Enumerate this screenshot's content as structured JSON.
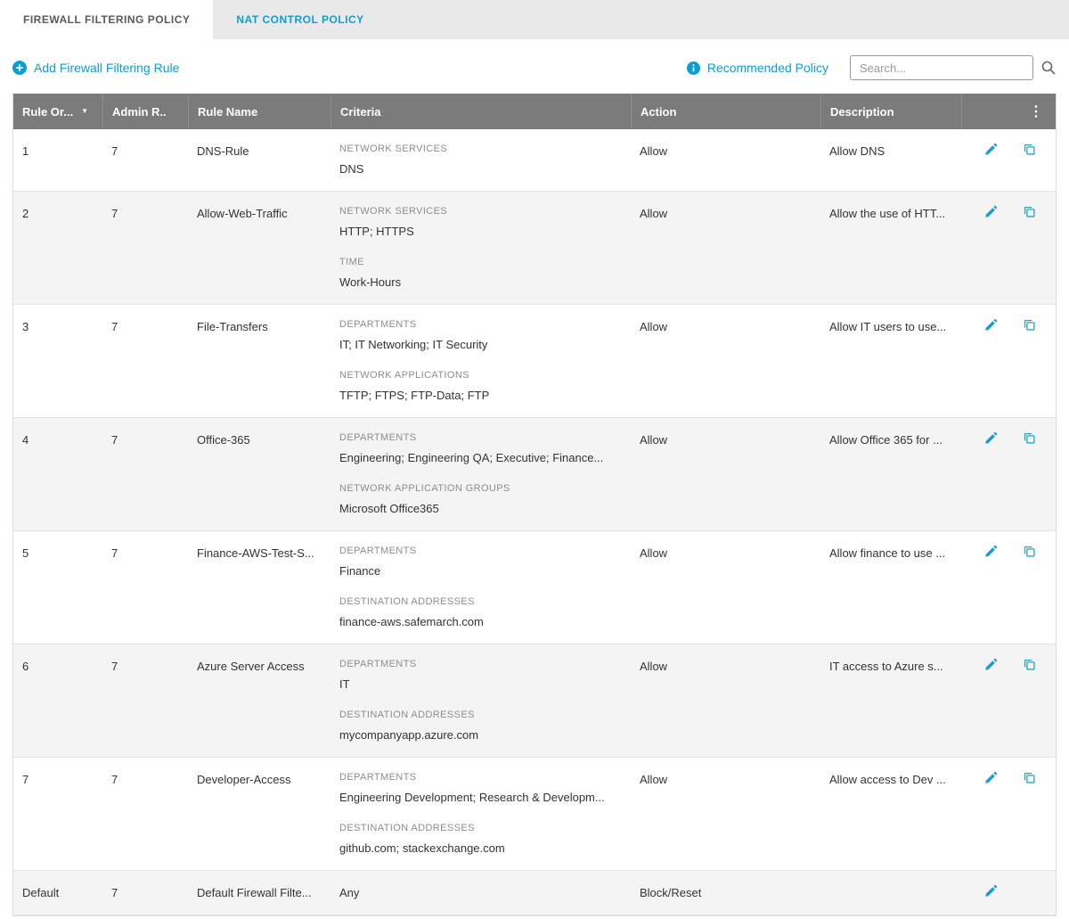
{
  "tabs": [
    {
      "label": "FIREWALL FILTERING POLICY",
      "active": true
    },
    {
      "label": "NAT CONTROL POLICY",
      "active": false
    }
  ],
  "toolbar": {
    "add_rule_label": "Add Firewall Filtering Rule",
    "recommended_policy_label": "Recommended Policy",
    "search_placeholder": "Search..."
  },
  "icons": {
    "add_rule": "plus-circle-icon",
    "recommended_info": "info-circle-icon",
    "search": "magnifier-icon",
    "sort": "caret-down-icon",
    "column_menu": "kebab-vertical-icon",
    "edit": "pencil-icon",
    "copy": "duplicate-icon"
  },
  "colors": {
    "accent": "#0b9ed6",
    "allow_green": "#6bab3f",
    "block_red": "#d64533",
    "header_bg": "#7b7b7b"
  },
  "table": {
    "columns": [
      "Rule Or...",
      "Admin R..",
      "Rule Name",
      "Criteria",
      "Action",
      "Description"
    ],
    "rows": [
      {
        "rule_order": "1",
        "admin_rank": "7",
        "rule_name": "DNS-Rule",
        "criteria": [
          {
            "label": "NETWORK SERVICES",
            "value": "DNS"
          }
        ],
        "action": "Allow",
        "action_type": "allow",
        "description": "Allow DNS",
        "can_copy": true
      },
      {
        "rule_order": "2",
        "admin_rank": "7",
        "rule_name": "Allow-Web-Traffic",
        "criteria": [
          {
            "label": "NETWORK SERVICES",
            "value": "HTTP; HTTPS"
          },
          {
            "label": "TIME",
            "value": "Work-Hours"
          }
        ],
        "action": "Allow",
        "action_type": "allow",
        "description": "Allow the use of HTT...",
        "can_copy": true
      },
      {
        "rule_order": "3",
        "admin_rank": "7",
        "rule_name": "File-Transfers",
        "criteria": [
          {
            "label": "DEPARTMENTS",
            "value": "IT; IT Networking; IT Security"
          },
          {
            "label": "NETWORK APPLICATIONS",
            "value": "TFTP; FTPS; FTP-Data; FTP"
          }
        ],
        "action": "Allow",
        "action_type": "allow",
        "description": "Allow IT users to use...",
        "can_copy": true
      },
      {
        "rule_order": "4",
        "admin_rank": "7",
        "rule_name": "Office-365",
        "criteria": [
          {
            "label": "DEPARTMENTS",
            "value": "Engineering; Engineering QA; Executive; Finance..."
          },
          {
            "label": "NETWORK APPLICATION GROUPS",
            "value": "Microsoft Office365"
          }
        ],
        "action": "Allow",
        "action_type": "allow",
        "description": "Allow Office 365 for ...",
        "can_copy": true
      },
      {
        "rule_order": "5",
        "admin_rank": "7",
        "rule_name": "Finance-AWS-Test-S...",
        "criteria": [
          {
            "label": "DEPARTMENTS",
            "value": "Finance"
          },
          {
            "label": "DESTINATION ADDRESSES",
            "value": "finance-aws.safemarch.com"
          }
        ],
        "action": "Allow",
        "action_type": "allow",
        "description": "Allow finance to use ...",
        "can_copy": true
      },
      {
        "rule_order": "6",
        "admin_rank": "7",
        "rule_name": "Azure Server Access",
        "criteria": [
          {
            "label": "DEPARTMENTS",
            "value": "IT"
          },
          {
            "label": "DESTINATION ADDRESSES",
            "value": "mycompanyapp.azure.com"
          }
        ],
        "action": "Allow",
        "action_type": "allow",
        "description": "IT access to Azure s...",
        "can_copy": true
      },
      {
        "rule_order": "7",
        "admin_rank": "7",
        "rule_name": "Developer-Access",
        "criteria": [
          {
            "label": "DEPARTMENTS",
            "value": "Engineering Development; Research & Developm..."
          },
          {
            "label": "DESTINATION ADDRESSES",
            "value": "github.com; stackexchange.com"
          }
        ],
        "action": "Allow",
        "action_type": "allow",
        "description": "Allow access to Dev ...",
        "can_copy": true
      },
      {
        "rule_order": "Default",
        "admin_rank": "7",
        "rule_name": "Default Firewall Filte...",
        "criteria": [
          {
            "label": "",
            "value": "Any"
          }
        ],
        "action": "Block/Reset",
        "action_type": "block",
        "description": "",
        "can_copy": false
      }
    ]
  }
}
